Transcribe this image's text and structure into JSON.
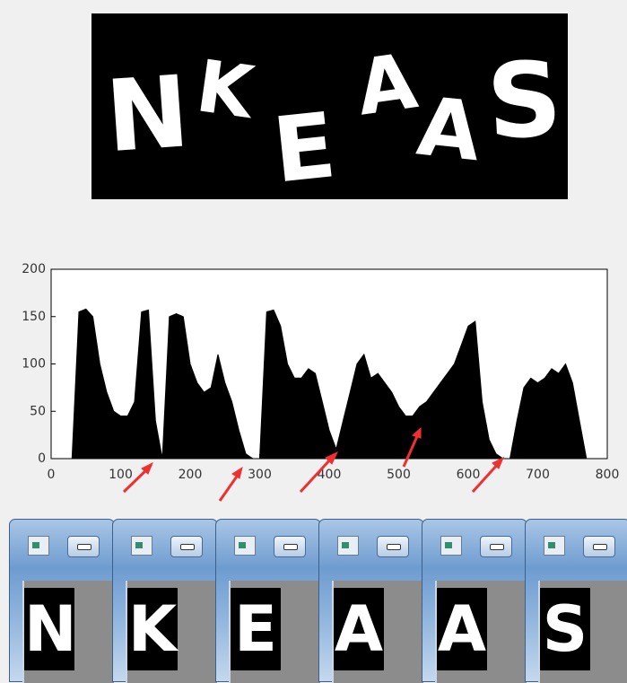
{
  "captcha": {
    "letters": [
      "N",
      "K",
      "E",
      "A",
      "A",
      "S"
    ]
  },
  "chart_data": {
    "type": "area",
    "color": "#000000",
    "x": [
      30,
      40,
      50,
      60,
      70,
      80,
      90,
      100,
      110,
      120,
      130,
      140,
      150,
      160,
      170,
      180,
      190,
      200,
      210,
      220,
      230,
      240,
      250,
      260,
      270,
      280,
      290,
      300,
      310,
      320,
      330,
      340,
      350,
      360,
      370,
      380,
      390,
      400,
      410,
      420,
      430,
      440,
      450,
      460,
      470,
      480,
      490,
      500,
      510,
      520,
      530,
      540,
      550,
      560,
      570,
      580,
      590,
      600,
      610,
      620,
      630,
      640,
      650,
      660,
      670,
      680,
      690,
      700,
      710,
      720,
      730,
      740,
      750,
      760,
      770,
      780
    ],
    "values": [
      0,
      155,
      158,
      150,
      100,
      70,
      50,
      45,
      45,
      60,
      155,
      157,
      40,
      0,
      150,
      153,
      150,
      100,
      80,
      70,
      75,
      110,
      80,
      60,
      30,
      5,
      0,
      0,
      155,
      157,
      140,
      100,
      85,
      85,
      95,
      90,
      60,
      30,
      10,
      40,
      70,
      100,
      110,
      85,
      90,
      80,
      70,
      55,
      45,
      45,
      55,
      60,
      70,
      80,
      90,
      100,
      120,
      140,
      145,
      60,
      20,
      5,
      0,
      0,
      40,
      75,
      85,
      80,
      85,
      95,
      90,
      100,
      80,
      40,
      0,
      0
    ],
    "xlim": [
      0,
      800
    ],
    "xticks": [
      0,
      100,
      200,
      300,
      400,
      500,
      600,
      700,
      800
    ],
    "ylim": [
      0,
      200
    ],
    "yticks": [
      0,
      50,
      100,
      150,
      200
    ]
  },
  "windows": [
    "N",
    "K",
    "E",
    "A",
    "A",
    "S"
  ]
}
